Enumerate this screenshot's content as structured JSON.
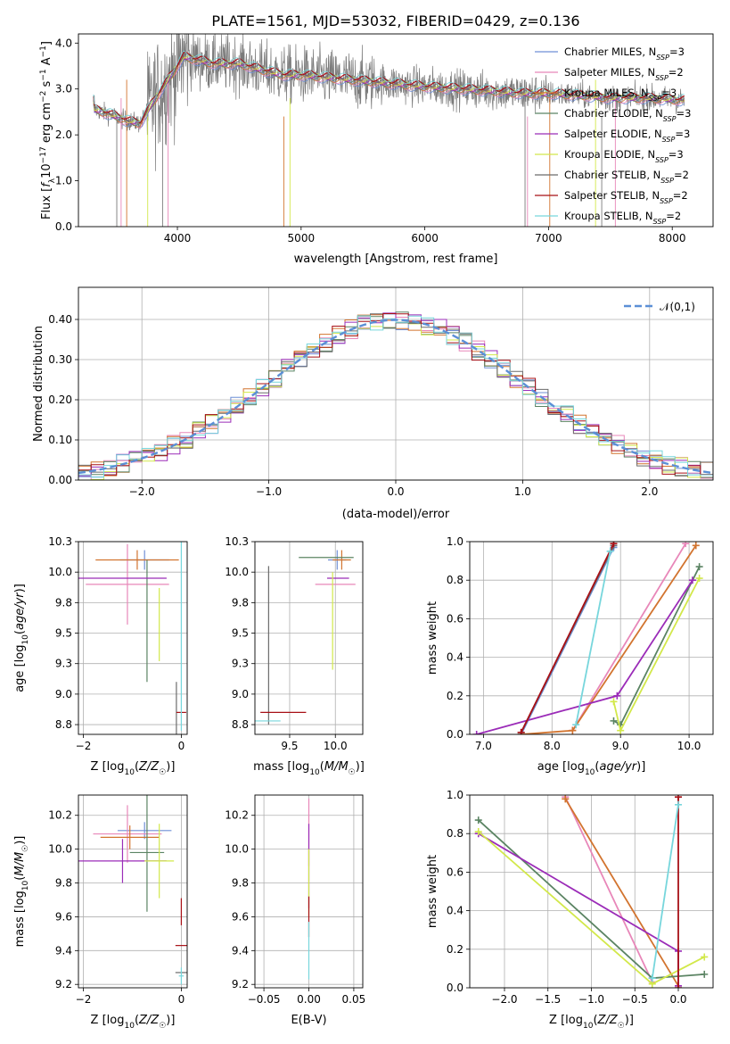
{
  "title": "PLATE=1561, MJD=53032, FIBERID=0429, z=0.136",
  "colors": {
    "Chabrier MILES": "#6f8fd6",
    "Salpeter MILES": "#e887b9",
    "Kroupa MILES": "#d2742f",
    "Chabrier ELODIE": "#5b8463",
    "Salpeter ELODIE": "#9b2cb8",
    "Kroupa ELODIE": "#d2e84a",
    "Chabrier STELIB": "#6b6b6b",
    "Salpeter STELIB": "#a81016",
    "Kroupa STELIB": "#77d6dc"
  },
  "legend": [
    {
      "key": "Chabrier MILES",
      "label": "Chabrier MILES, N",
      "sub": "SSP",
      "tail": "=3"
    },
    {
      "key": "Salpeter MILES",
      "label": "Salpeter MILES, N",
      "sub": "SSP",
      "tail": "=2"
    },
    {
      "key": "Kroupa MILES",
      "label": "Kroupa MILES, N",
      "sub": "SSP",
      "tail": "=3"
    },
    {
      "key": "Chabrier ELODIE",
      "label": "Chabrier ELODIE, N",
      "sub": "SSP",
      "tail": "=3"
    },
    {
      "key": "Salpeter ELODIE",
      "label": "Salpeter ELODIE, N",
      "sub": "SSP",
      "tail": "=3"
    },
    {
      "key": "Kroupa ELODIE",
      "label": "Kroupa ELODIE, N",
      "sub": "SSP",
      "tail": "=3"
    },
    {
      "key": "Chabrier STELIB",
      "label": "Chabrier STELIB, N",
      "sub": "SSP",
      "tail": "=2"
    },
    {
      "key": "Salpeter STELIB",
      "label": "Salpeter STELIB, N",
      "sub": "SSP",
      "tail": "=2"
    },
    {
      "key": "Kroupa STELIB",
      "label": "Kroupa STELIB, N",
      "sub": "SSP",
      "tail": "=2"
    }
  ],
  "chart_data": [
    {
      "id": "spectrum",
      "type": "line",
      "xlabel": "wavelength [Angstrom, rest frame]",
      "ylabel": "Flux [f_λ10^-17 erg cm^-2 s^-1 A^-1]",
      "xlim": [
        3200,
        8330
      ],
      "ylim": [
        0,
        4.2
      ],
      "xticks": [
        4000,
        5000,
        6000,
        7000,
        8000
      ],
      "yticks": [
        0,
        1,
        2,
        3,
        4
      ],
      "observed_range": [
        3322,
        8100
      ],
      "model_points": [
        [
          3330,
          2.55
        ],
        [
          3450,
          2.45
        ],
        [
          3600,
          2.3
        ],
        [
          3700,
          2.25
        ],
        [
          3800,
          2.7
        ],
        [
          3950,
          3.3
        ],
        [
          4050,
          3.7
        ],
        [
          4300,
          3.55
        ],
        [
          4500,
          3.55
        ],
        [
          4700,
          3.4
        ],
        [
          4861,
          3.3
        ],
        [
          5000,
          3.3
        ],
        [
          5200,
          3.25
        ],
        [
          5400,
          3.2
        ],
        [
          5600,
          3.15
        ],
        [
          5800,
          3.1
        ],
        [
          6000,
          3.05
        ],
        [
          6300,
          3.0
        ],
        [
          6563,
          2.95
        ],
        [
          6800,
          2.9
        ],
        [
          7000,
          2.9
        ],
        [
          7300,
          2.85
        ],
        [
          7500,
          2.8
        ],
        [
          7800,
          2.8
        ],
        [
          8100,
          2.75
        ]
      ]
    },
    {
      "id": "residuals",
      "type": "histogram",
      "xlabel": "(data-model)/error",
      "ylabel": "Normed distribution",
      "xlim": [
        -2.5,
        2.5
      ],
      "ylim": [
        0,
        0.48
      ],
      "xticks": [
        -2,
        -1,
        0,
        1,
        2
      ],
      "yticks": [
        0.0,
        0.1,
        0.2,
        0.3,
        0.4
      ],
      "reference_label": "𝒩(0,1)",
      "reference": "normal pdf, mean 0, sigma 1",
      "bin_edges_start": -2.5,
      "bin_width": 0.1
    },
    {
      "id": "age-vs-Z",
      "type": "errorbar",
      "xlabel": "Z [log10(Z/Z☉)]",
      "ylabel": "age [log10(age/yr)]",
      "xlim": [
        -2.1,
        0.12
      ],
      "ylim": [
        8.67,
        10.25
      ],
      "xticks": [
        -2,
        0
      ],
      "yticks": [
        8.75,
        9.0,
        9.25,
        9.5,
        9.75,
        10.0,
        10.25
      ],
      "points": [
        {
          "key": "Chabrier MILES",
          "x": -0.75,
          "y": 10.1,
          "xerr": 0.5,
          "yerr": 0.08
        },
        {
          "key": "Salpeter MILES",
          "x": -1.1,
          "y": 9.9,
          "xerr": 0.85,
          "yerr": 0.33
        },
        {
          "key": "Kroupa MILES",
          "x": -0.9,
          "y": 10.1,
          "xerr": 0.85,
          "yerr": 0.08
        },
        {
          "key": "Chabrier ELODIE",
          "x": -0.7,
          "y": 9.6,
          "xerr": 0.0,
          "yerr": 0.5
        },
        {
          "key": "Salpeter ELODIE",
          "x": -1.2,
          "y": 9.95,
          "xerr": 0.9,
          "yerr": 0.0
        },
        {
          "key": "Kroupa ELODIE",
          "x": -0.45,
          "y": 9.57,
          "xerr": 0.0,
          "yerr": 0.3
        },
        {
          "key": "Chabrier STELIB",
          "x": -0.1,
          "y": 8.8,
          "xerr": 0.0,
          "yerr": 0.3
        },
        {
          "key": "Salpeter STELIB",
          "x": 0.0,
          "y": 8.85,
          "xerr": 0.1,
          "yerr": 0.0
        },
        {
          "key": "Kroupa STELIB",
          "x": 0.0,
          "y": 9.5,
          "xerr": 0.0,
          "yerr": 0.8
        }
      ]
    },
    {
      "id": "age-vs-mass",
      "type": "errorbar",
      "xlabel": "mass [log10(M/M☉)]",
      "ylabel": "",
      "xlim": [
        9.12,
        10.3
      ],
      "ylim": [
        8.67,
        10.25
      ],
      "xticks": [
        9.5,
        10.0
      ],
      "yticks": [
        8.75,
        9.0,
        9.25,
        9.5,
        9.75,
        10.0,
        10.25
      ],
      "points": [
        {
          "key": "Chabrier MILES",
          "x": 10.02,
          "y": 10.1,
          "xerr": 0.1,
          "yerr": 0.08
        },
        {
          "key": "Salpeter MILES",
          "x": 10.0,
          "y": 9.9,
          "xerr": 0.22,
          "yerr": 0.0
        },
        {
          "key": "Kroupa MILES",
          "x": 10.07,
          "y": 10.1,
          "xerr": 0.1,
          "yerr": 0.08
        },
        {
          "key": "Chabrier ELODIE",
          "x": 9.9,
          "y": 10.12,
          "xerr": 0.3,
          "yerr": 0.0
        },
        {
          "key": "Salpeter ELODIE",
          "x": 10.03,
          "y": 9.95,
          "xerr": 0.12,
          "yerr": 0.0
        },
        {
          "key": "Kroupa ELODIE",
          "x": 9.97,
          "y": 9.6,
          "xerr": 0.0,
          "yerr": 0.4
        },
        {
          "key": "Chabrier STELIB",
          "x": 9.27,
          "y": 9.4,
          "xerr": 0.0,
          "yerr": 0.65
        },
        {
          "key": "Salpeter STELIB",
          "x": 9.43,
          "y": 8.85,
          "xerr": 0.25,
          "yerr": 0.0
        },
        {
          "key": "Kroupa STELIB",
          "x": 9.25,
          "y": 8.78,
          "xerr": 0.15,
          "yerr": 0.0
        }
      ]
    },
    {
      "id": "weight-vs-age",
      "type": "line",
      "xlabel": "age [log10(age/yr)]",
      "ylabel": "mass weight",
      "xlim": [
        6.8,
        10.35
      ],
      "ylim": [
        0,
        1.0
      ],
      "xticks": [
        7,
        8,
        9,
        10
      ],
      "yticks": [
        0.0,
        0.2,
        0.4,
        0.6,
        0.8,
        1.0
      ],
      "series": [
        {
          "key": "Chabrier MILES",
          "x": [
            7.55,
            8.9
          ],
          "y": [
            0.0,
            0.97
          ]
        },
        {
          "key": "Salpeter MILES",
          "x": [
            8.3,
            9.95
          ],
          "y": [
            0.02,
            0.99
          ]
        },
        {
          "key": "Kroupa MILES",
          "x": [
            7.55,
            8.3,
            10.1
          ],
          "y": [
            0.0,
            0.02,
            0.98
          ]
        },
        {
          "key": "Chabrier ELODIE",
          "x": [
            8.9,
            9.0,
            10.15
          ],
          "y": [
            0.07,
            0.05,
            0.87
          ]
        },
        {
          "key": "Salpeter ELODIE",
          "x": [
            6.9,
            8.95,
            10.05
          ],
          "y": [
            0.0,
            0.2,
            0.8
          ]
        },
        {
          "key": "Kroupa ELODIE",
          "x": [
            8.9,
            9.0,
            10.15
          ],
          "y": [
            0.17,
            0.02,
            0.81
          ]
        },
        {
          "key": "Chabrier STELIB",
          "x": [
            7.55,
            8.9
          ],
          "y": [
            0.01,
            0.98
          ]
        },
        {
          "key": "Salpeter STELIB",
          "x": [
            7.55,
            8.9
          ],
          "y": [
            0.01,
            0.99
          ]
        },
        {
          "key": "Kroupa STELIB",
          "x": [
            8.35,
            8.85
          ],
          "y": [
            0.05,
            0.95
          ]
        }
      ]
    },
    {
      "id": "mass-vs-Z",
      "type": "errorbar",
      "xlabel": "Z [log10(Z/Z☉)]",
      "ylabel": "mass [log10(M/M☉)]",
      "xlim": [
        -2.1,
        0.12
      ],
      "ylim": [
        9.18,
        10.32
      ],
      "xticks": [
        -2,
        0
      ],
      "yticks": [
        9.2,
        9.4,
        9.6,
        9.8,
        10.0,
        10.2
      ],
      "points": [
        {
          "key": "Chabrier MILES",
          "x": -0.75,
          "y": 10.11,
          "xerr": 0.55,
          "yerr": 0.05
        },
        {
          "key": "Salpeter MILES",
          "x": -1.1,
          "y": 10.09,
          "xerr": 0.7,
          "yerr": 0.17
        },
        {
          "key": "Kroupa MILES",
          "x": -1.05,
          "y": 10.07,
          "xerr": 0.6,
          "yerr": 0.07
        },
        {
          "key": "Chabrier ELODIE",
          "x": -0.7,
          "y": 9.98,
          "xerr": 0.35,
          "yerr": 0.35
        },
        {
          "key": "Salpeter ELODIE",
          "x": -1.2,
          "y": 9.93,
          "xerr": 0.9,
          "yerr": 0.13
        },
        {
          "key": "Kroupa ELODIE",
          "x": -0.45,
          "y": 9.93,
          "xerr": 0.3,
          "yerr": 0.22
        },
        {
          "key": "Chabrier STELIB",
          "x": 0.0,
          "y": 9.27,
          "xerr": 0.12,
          "yerr": 0.0
        },
        {
          "key": "Salpeter STELIB",
          "x": 0.0,
          "y": 9.43,
          "xerr": 0.12,
          "yerr": 0.0
        },
        {
          "key": "Kroupa STELIB",
          "x": 0.0,
          "y": 9.25,
          "xerr": 0.05,
          "yerr": 0.05
        }
      ],
      "extra_segments": [
        {
          "key": "Salpeter STELIB",
          "x": 0.0,
          "y0": 9.55,
          "y1": 9.71
        }
      ]
    },
    {
      "id": "mass-vs-ebv",
      "type": "errorbar",
      "xlabel": "E(B-V)",
      "ylabel": "",
      "xlim": [
        -0.06,
        0.06
      ],
      "ylim": [
        9.18,
        10.32
      ],
      "xticks": [
        -0.05,
        0.0,
        0.05
      ],
      "yticks": [
        9.2,
        9.4,
        9.6,
        9.8,
        10.0,
        10.2
      ],
      "points": [
        {
          "key": "Salpeter MILES",
          "x": 0.0,
          "y": 10.1,
          "xerr": 0.0,
          "yerr": 0.2
        },
        {
          "key": "Salpeter ELODIE",
          "x": 0.0,
          "y": 9.9,
          "xerr": 0.0,
          "yerr": 0.25
        },
        {
          "key": "Kroupa ELODIE",
          "x": 0.0,
          "y": 9.8,
          "xerr": 0.0,
          "yerr": 0.2
        },
        {
          "key": "Salpeter STELIB",
          "x": 0.0,
          "y": 9.6,
          "xerr": 0.0,
          "yerr": 0.12
        },
        {
          "key": "Kroupa STELIB",
          "x": 0.0,
          "y": 9.4,
          "xerr": 0.0,
          "yerr": 0.17
        }
      ]
    },
    {
      "id": "weight-vs-Z",
      "type": "line",
      "xlabel": "Z [log10(Z/Z☉)]",
      "ylabel": "mass weight",
      "xlim": [
        -2.4,
        0.4
      ],
      "ylim": [
        0,
        1.0
      ],
      "xticks": [
        -2.0,
        -1.5,
        -1.0,
        -0.5,
        0.0
      ],
      "yticks": [
        0.0,
        0.2,
        0.4,
        0.6,
        0.8,
        1.0
      ],
      "series": [
        {
          "key": "Salpeter MILES",
          "x": [
            -1.3,
            -0.3
          ],
          "y": [
            0.99,
            0.03
          ]
        },
        {
          "key": "Kroupa MILES",
          "x": [
            -1.3,
            0.0
          ],
          "y": [
            0.98,
            0.01
          ]
        },
        {
          "key": "Chabrier ELODIE",
          "x": [
            -2.3,
            -0.3,
            0.3
          ],
          "y": [
            0.87,
            0.05,
            0.07
          ]
        },
        {
          "key": "Salpeter ELODIE",
          "x": [
            -2.3,
            0.0,
            0.0
          ],
          "y": [
            0.8,
            0.19,
            0.01
          ]
        },
        {
          "key": "Kroupa ELODIE",
          "x": [
            -2.3,
            -0.3,
            0.3
          ],
          "y": [
            0.81,
            0.02,
            0.16
          ]
        },
        {
          "key": "Salpeter STELIB",
          "x": [
            0.0,
            0.0
          ],
          "y": [
            0.0,
            0.99
          ]
        },
        {
          "key": "Kroupa STELIB",
          "x": [
            -0.3,
            0.0
          ],
          "y": [
            0.05,
            0.95
          ]
        }
      ]
    }
  ]
}
